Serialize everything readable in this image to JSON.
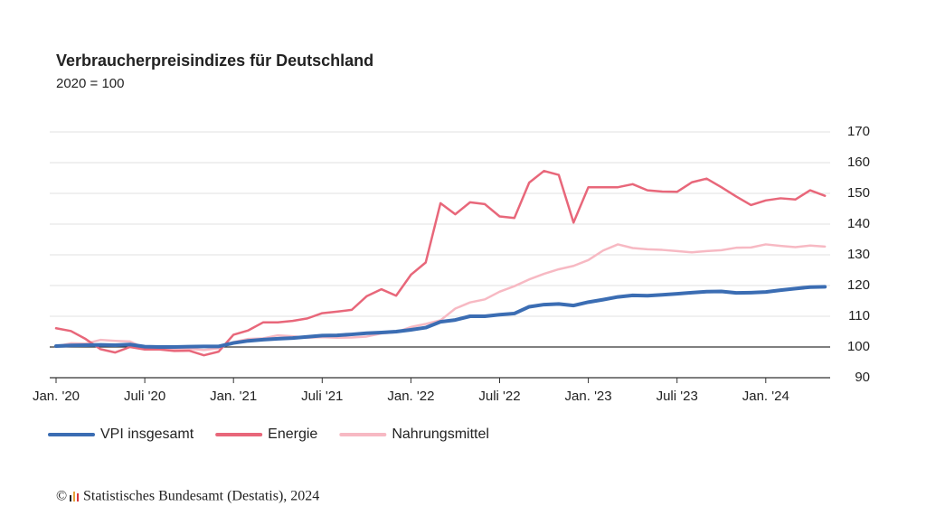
{
  "chart_data": {
    "type": "line",
    "title": "Verbraucherpreisindizes für Deutschland",
    "subtitle": "2020 = 100",
    "source": "Statistisches Bundesamt (Destatis), 2024",
    "x": [
      "2020-01",
      "2020-02",
      "2020-03",
      "2020-04",
      "2020-05",
      "2020-06",
      "2020-07",
      "2020-08",
      "2020-09",
      "2020-10",
      "2020-11",
      "2020-12",
      "2021-01",
      "2021-02",
      "2021-03",
      "2021-04",
      "2021-05",
      "2021-06",
      "2021-07",
      "2021-08",
      "2021-09",
      "2021-10",
      "2021-11",
      "2021-12",
      "2022-01",
      "2022-02",
      "2022-03",
      "2022-04",
      "2022-05",
      "2022-06",
      "2022-07",
      "2022-08",
      "2022-09",
      "2022-10",
      "2022-11",
      "2022-12",
      "2023-01",
      "2023-02",
      "2023-03",
      "2023-04",
      "2023-05",
      "2023-06",
      "2023-07",
      "2023-08",
      "2023-09",
      "2023-10",
      "2023-11",
      "2023-12",
      "2024-01",
      "2024-02",
      "2024-03",
      "2024-04",
      "2024-05"
    ],
    "xticks": [
      {
        "value": "2020-01",
        "label": "Jan. '20"
      },
      {
        "value": "2020-07",
        "label": "Juli '20"
      },
      {
        "value": "2021-01",
        "label": "Jan. '21"
      },
      {
        "value": "2021-07",
        "label": "Juli '21"
      },
      {
        "value": "2022-01",
        "label": "Jan. '22"
      },
      {
        "value": "2022-07",
        "label": "Juli '22"
      },
      {
        "value": "2023-01",
        "label": "Jan. '23"
      },
      {
        "value": "2023-07",
        "label": "Juli '23"
      },
      {
        "value": "2024-01",
        "label": "Jan. '24"
      }
    ],
    "ylim": [
      90,
      170
    ],
    "yticks": [
      90,
      100,
      110,
      120,
      130,
      140,
      150,
      160,
      170
    ],
    "baseline": 100,
    "grid": true,
    "legend": "bottom-left",
    "series": [
      {
        "name": "VPI insgesamt",
        "color": "#3b6db3",
        "values": [
          100.3,
          100.5,
          100.6,
          100.7,
          100.6,
          100.8,
          100.1,
          100.0,
          100.0,
          100.1,
          100.2,
          100.2,
          101.3,
          102.0,
          102.4,
          102.7,
          102.9,
          103.3,
          103.7,
          103.8,
          104.1,
          104.5,
          104.7,
          105.0,
          105.6,
          106.3,
          108.2,
          108.8,
          110.0,
          110.0,
          110.5,
          110.9,
          113.1,
          113.8,
          114.0,
          113.5,
          114.6,
          115.4,
          116.3,
          116.8,
          116.7,
          117.0,
          117.3,
          117.7,
          118.0,
          118.1,
          117.6,
          117.7,
          117.9,
          118.5,
          119.0,
          119.5,
          119.6
        ]
      },
      {
        "name": "Energie",
        "color": "#e8677a",
        "values": [
          106.1,
          105.2,
          102.6,
          99.3,
          98.2,
          100.0,
          99.2,
          99.2,
          98.7,
          98.8,
          97.3,
          98.5,
          104.0,
          105.4,
          108.0,
          108.0,
          108.5,
          109.3,
          111.0,
          111.5,
          112.1,
          116.5,
          118.8,
          116.7,
          123.5,
          127.5,
          146.8,
          143.2,
          147.1,
          146.5,
          142.5,
          142.0,
          153.5,
          157.3,
          156.0,
          140.5,
          152.0,
          152.0,
          152.0,
          153.0,
          151.0,
          150.6,
          150.5,
          153.6,
          154.8,
          152.0,
          149.0,
          146.2,
          147.7,
          148.4,
          148.0,
          151.0,
          149.2
        ]
      },
      {
        "name": "Nahrungsmittel",
        "color": "#f7b9c3",
        "values": [
          100.2,
          101.2,
          101.1,
          102.3,
          102.0,
          101.8,
          99.6,
          99.3,
          99.1,
          99.4,
          99.0,
          99.6,
          101.6,
          102.6,
          102.8,
          103.8,
          103.5,
          103.0,
          103.2,
          103.0,
          103.1,
          103.4,
          104.4,
          104.8,
          106.5,
          107.5,
          108.7,
          112.5,
          114.5,
          115.5,
          118.0,
          119.8,
          122.0,
          123.8,
          125.3,
          126.4,
          128.3,
          131.4,
          133.4,
          132.2,
          131.8,
          131.6,
          131.2,
          130.8,
          131.2,
          131.5,
          132.3,
          132.4,
          133.4,
          132.9,
          132.5,
          133.0,
          132.7
        ]
      }
    ]
  }
}
